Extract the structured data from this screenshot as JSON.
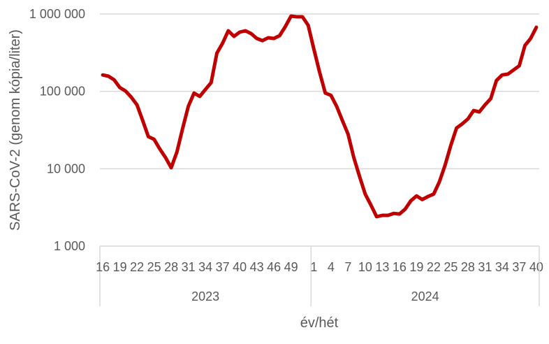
{
  "chart_data": {
    "type": "line",
    "xlabel": "év/hét",
    "ylabel": "SARS-CoV-2 (genom kópia/liter)",
    "yscale": "log",
    "ylim": [
      1000,
      1000000
    ],
    "yticks": [
      1000,
      10000,
      100000,
      1000000
    ],
    "ytick_labels": [
      "1 000",
      "10 000",
      "100 000",
      "1 000 000"
    ],
    "grid": true,
    "line_color": "#C00000",
    "groups": [
      {
        "label": "2023",
        "weeks": [
          16,
          17,
          18,
          19,
          20,
          21,
          22,
          23,
          24,
          25,
          26,
          27,
          28,
          29,
          30,
          31,
          32,
          33,
          34,
          35,
          36,
          37,
          38,
          39,
          40,
          41,
          42,
          43,
          44,
          45,
          46,
          47,
          48,
          49,
          50,
          51,
          52
        ],
        "tick_labels": [
          "16",
          "19",
          "22",
          "25",
          "28",
          "31",
          "34",
          "37",
          "40",
          "43",
          "46",
          "49"
        ],
        "values": [
          163000,
          157000,
          141000,
          112000,
          101000,
          84000,
          67000,
          42000,
          26000,
          24000,
          18000,
          14000,
          10300,
          16500,
          33000,
          64000,
          95000,
          86000,
          106000,
          130000,
          312000,
          417000,
          607000,
          514000,
          582000,
          607000,
          558000,
          483000,
          453000,
          493000,
          483000,
          525000,
          688000,
          939000,
          920000,
          920000,
          716000
        ]
      },
      {
        "label": "2024",
        "weeks": [
          1,
          2,
          3,
          4,
          5,
          6,
          7,
          8,
          9,
          10,
          11,
          12,
          13,
          14,
          15,
          16,
          17,
          18,
          19,
          20,
          21,
          22,
          23,
          24,
          25,
          26,
          27,
          28,
          29,
          30,
          31,
          32,
          33,
          34,
          35,
          36,
          37,
          38,
          39,
          40
        ],
        "tick_labels": [
          "1",
          "4",
          "7",
          "10",
          "13",
          "16",
          "19",
          "22",
          "25",
          "28",
          "31",
          "34",
          "37",
          "40"
        ],
        "values": [
          353000,
          178000,
          95000,
          89000,
          64000,
          42000,
          28000,
          14000,
          8000,
          4700,
          3400,
          2400,
          2500,
          2500,
          2650,
          2600,
          3000,
          3850,
          4450,
          4000,
          4370,
          4700,
          6760,
          11100,
          20000,
          33600,
          38000,
          44000,
          56500,
          54200,
          67000,
          80500,
          138000,
          163000,
          167000,
          189000,
          214000,
          392000,
          483000,
          673000
        ]
      }
    ]
  }
}
